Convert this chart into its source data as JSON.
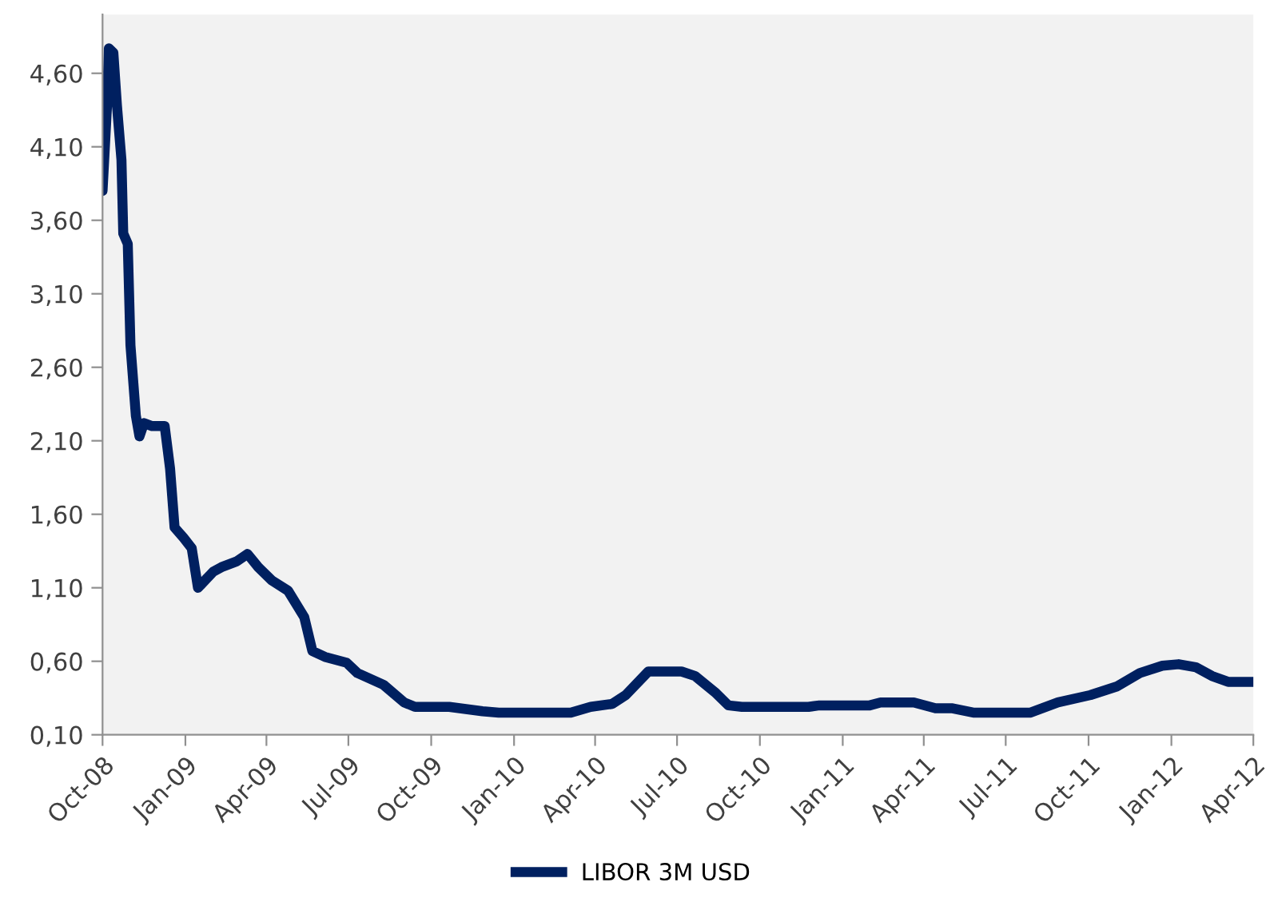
{
  "chart_data": {
    "type": "line",
    "legend": "bottom",
    "grid": false,
    "marker": "none",
    "line_style": "solid",
    "xlim": [
      "2008-10-01",
      "2012-04-01"
    ],
    "xticks": [
      {
        "value": "2008-10-01",
        "label": "Oct-08"
      },
      {
        "value": "2009-01-01",
        "label": "Jan-09"
      },
      {
        "value": "2009-04-01",
        "label": "Apr-09"
      },
      {
        "value": "2009-07-01",
        "label": "Jul-09"
      },
      {
        "value": "2009-10-01",
        "label": "Oct-09"
      },
      {
        "value": "2010-01-01",
        "label": "Jan-10"
      },
      {
        "value": "2010-04-01",
        "label": "Apr-10"
      },
      {
        "value": "2010-07-01",
        "label": "Jul-10"
      },
      {
        "value": "2010-10-01",
        "label": "Oct-10"
      },
      {
        "value": "2011-01-01",
        "label": "Jan-11"
      },
      {
        "value": "2011-04-01",
        "label": "Apr-11"
      },
      {
        "value": "2011-07-01",
        "label": "Jul-11"
      },
      {
        "value": "2011-10-01",
        "label": "Oct-11"
      },
      {
        "value": "2012-01-01",
        "label": "Jan-12"
      },
      {
        "value": "2012-04-01",
        "label": "Apr-12"
      }
    ],
    "ylim": [
      0.1,
      5.0
    ],
    "yticks": [
      {
        "value": 0.1,
        "label": "0,10"
      },
      {
        "value": 0.6,
        "label": "0,60"
      },
      {
        "value": 1.1,
        "label": "1,10"
      },
      {
        "value": 1.6,
        "label": "1,60"
      },
      {
        "value": 2.1,
        "label": "2,10"
      },
      {
        "value": 2.6,
        "label": "2,60"
      },
      {
        "value": 3.1,
        "label": "3,10"
      },
      {
        "value": 3.6,
        "label": "3,60"
      },
      {
        "value": 4.1,
        "label": "4,10"
      },
      {
        "value": 4.6,
        "label": "4,60"
      }
    ],
    "x": [
      "2008-10-01",
      "2008-10-06",
      "2008-10-08",
      "2008-10-13",
      "2008-10-17",
      "2008-10-22",
      "2008-10-24",
      "2008-10-29",
      "2008-11-01",
      "2008-11-07",
      "2008-11-11",
      "2008-11-16",
      "2008-11-25",
      "2008-12-09",
      "2008-12-15",
      "2008-12-20",
      "2008-12-30",
      "2009-01-08",
      "2009-01-15",
      "2009-02-01",
      "2009-02-10",
      "2009-02-27",
      "2009-03-11",
      "2009-03-23",
      "2009-04-07",
      "2009-04-25",
      "2009-05-13",
      "2009-05-22",
      "2009-06-05",
      "2009-06-29",
      "2009-07-11",
      "2009-08-09",
      "2009-09-01",
      "2009-09-13",
      "2009-09-20",
      "2009-10-21",
      "2009-11-27",
      "2009-12-15",
      "2010-03-05",
      "2010-03-27",
      "2010-04-20",
      "2010-05-05",
      "2010-05-30",
      "2010-07-06",
      "2010-07-21",
      "2010-08-12",
      "2010-08-27",
      "2010-09-11",
      "2010-11-24",
      "2010-12-06",
      "2011-01-31",
      "2011-02-12",
      "2011-03-21",
      "2011-04-14",
      "2011-05-03",
      "2011-05-27",
      "2011-07-28",
      "2011-08-28",
      "2011-10-03",
      "2011-11-02",
      "2011-11-27",
      "2011-12-22",
      "2012-01-09",
      "2012-01-28",
      "2012-02-15",
      "2012-03-04",
      "2012-04-01"
    ],
    "series": [
      {
        "name": "LIBOR 3M USD",
        "color": "#002060",
        "values": [
          3.8,
          4.38,
          4.77,
          4.74,
          4.38,
          4.01,
          3.51,
          3.44,
          2.75,
          2.27,
          2.13,
          2.22,
          2.2,
          2.2,
          1.91,
          1.51,
          1.44,
          1.37,
          1.1,
          1.21,
          1.24,
          1.28,
          1.33,
          1.24,
          1.15,
          1.08,
          0.9,
          0.67,
          0.63,
          0.59,
          0.52,
          0.44,
          0.32,
          0.29,
          0.29,
          0.29,
          0.26,
          0.25,
          0.25,
          0.29,
          0.31,
          0.37,
          0.53,
          0.53,
          0.5,
          0.39,
          0.3,
          0.29,
          0.29,
          0.3,
          0.3,
          0.32,
          0.32,
          0.28,
          0.28,
          0.25,
          0.25,
          0.32,
          0.37,
          0.43,
          0.52,
          0.57,
          0.58,
          0.56,
          0.5,
          0.46,
          0.46
        ]
      }
    ]
  }
}
